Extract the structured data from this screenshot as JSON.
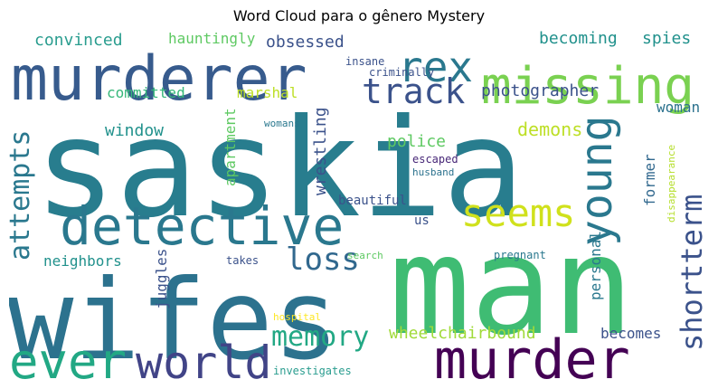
{
  "title": "Word Cloud para o gênero Mystery",
  "words": [
    {
      "text": "saskia",
      "color": "#287d8e"
    },
    {
      "text": "man",
      "color": "#3fbc73"
    },
    {
      "text": "wifes",
      "color": "#2c728e"
    },
    {
      "text": "murderer",
      "color": "#375b8d"
    },
    {
      "text": "detective",
      "color": "#2a788e"
    },
    {
      "text": "missing",
      "color": "#7ad151"
    },
    {
      "text": "murder",
      "color": "#440154"
    },
    {
      "text": "ever",
      "color": "#22a884"
    },
    {
      "text": "world",
      "color": "#414487"
    },
    {
      "text": "rex",
      "color": "#2a788e"
    },
    {
      "text": "young",
      "color": "#2a788e"
    },
    {
      "text": "track",
      "color": "#3b528b"
    },
    {
      "text": "seems",
      "color": "#d0e11c"
    },
    {
      "text": "shortterm",
      "color": "#3b528b"
    },
    {
      "text": "attempts",
      "color": "#2a788e"
    },
    {
      "text": "loss",
      "color": "#31688e"
    },
    {
      "text": "memory",
      "color": "#22a884"
    },
    {
      "text": "convinced",
      "color": "#2a9d8f"
    },
    {
      "text": "obsessed",
      "color": "#3b528b"
    },
    {
      "text": "hauntingly",
      "color": "#5ec962"
    },
    {
      "text": "becoming",
      "color": "#21918c"
    },
    {
      "text": "spies",
      "color": "#21918c"
    },
    {
      "text": "committed",
      "color": "#35b779"
    },
    {
      "text": "marshal",
      "color": "#bddf26"
    },
    {
      "text": "photographer",
      "color": "#3b528b"
    },
    {
      "text": "window",
      "color": "#21918c"
    },
    {
      "text": "apartment",
      "color": "#5ec962"
    },
    {
      "text": "wrestling",
      "color": "#3b528b"
    },
    {
      "text": "police",
      "color": "#5ec962"
    },
    {
      "text": "demons",
      "color": "#bddf26"
    },
    {
      "text": "woman",
      "color": "#2c728e"
    },
    {
      "text": "former",
      "color": "#31688e"
    },
    {
      "text": "disappearance",
      "color": "#b5de2b"
    },
    {
      "text": "neighbors",
      "color": "#21918c"
    },
    {
      "text": "juggles",
      "color": "#3b528b"
    },
    {
      "text": "wheelchairbound",
      "color": "#a0da39"
    },
    {
      "text": "personal",
      "color": "#2a788e"
    },
    {
      "text": "becomes",
      "color": "#3b528b"
    },
    {
      "text": "beautiful",
      "color": "#3b528b"
    },
    {
      "text": "insane",
      "color": "#3b528b"
    },
    {
      "text": "criminally",
      "color": "#3b528b"
    },
    {
      "text": "womans",
      "color": "#2a788e"
    },
    {
      "text": "escaped",
      "color": "#482878"
    },
    {
      "text": "husband",
      "color": "#2c728e"
    },
    {
      "text": "us",
      "color": "#3b528b"
    },
    {
      "text": "takes",
      "color": "#3b528b"
    },
    {
      "text": "search",
      "color": "#5ec962"
    },
    {
      "text": "pregnant",
      "color": "#2a788e"
    },
    {
      "text": "hospital",
      "color": "#fde725"
    },
    {
      "text": "investigates",
      "color": "#2a9d8f"
    }
  ]
}
